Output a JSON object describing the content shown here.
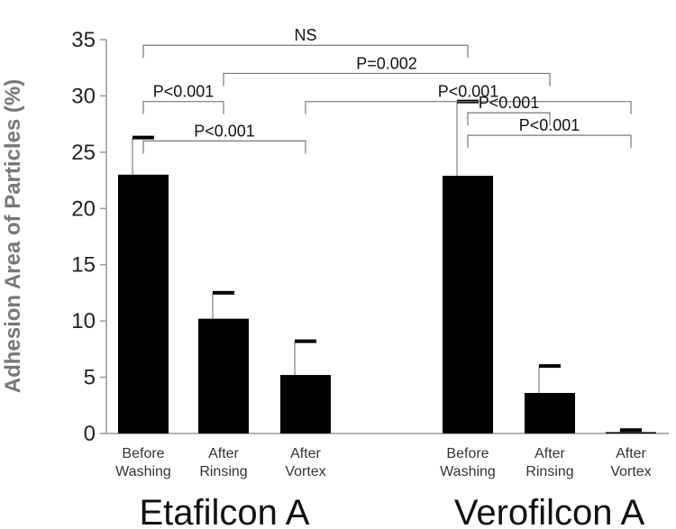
{
  "chart_data": {
    "type": "bar",
    "title": "",
    "ylabel": "Adhesion Area of Particles (%)",
    "xlabel": "",
    "ylim": [
      0,
      35
    ],
    "yticks": [
      0,
      5,
      10,
      15,
      20,
      25,
      30,
      35
    ],
    "groups": [
      {
        "name": "Etafilcon A",
        "bars": [
          {
            "label": [
              "Before",
              "Washing"
            ],
            "value": 23.0,
            "error": 3.3
          },
          {
            "label": [
              "After",
              "Rinsing"
            ],
            "value": 10.2,
            "error": 2.3
          },
          {
            "label": [
              "After",
              "Vortex"
            ],
            "value": 5.2,
            "error": 3.0
          }
        ]
      },
      {
        "name": "Verofilcon A",
        "bars": [
          {
            "label": [
              "Before",
              "Washing"
            ],
            "value": 22.9,
            "error": 6.6
          },
          {
            "label": [
              "After",
              "Rinsing"
            ],
            "value": 3.6,
            "error": 2.4
          },
          {
            "label": [
              "After",
              "Vortex"
            ],
            "value": 0.1,
            "error": 0.2
          }
        ]
      }
    ],
    "comparisons": [
      {
        "text": "NS",
        "from": [
          0,
          0
        ],
        "to": [
          1,
          0
        ],
        "level": 34.5
      },
      {
        "text": "P=0.002",
        "from": [
          0,
          1
        ],
        "to": [
          1,
          1
        ],
        "level": 32.0
      },
      {
        "text": "P<0.001",
        "from": [
          0,
          2
        ],
        "to": [
          1,
          2
        ],
        "level": 29.5
      },
      {
        "text": "P<0.001",
        "from": [
          0,
          0
        ],
        "to": [
          0,
          1
        ],
        "level": 29.5
      },
      {
        "text": "P<0.001",
        "from": [
          0,
          0
        ],
        "to": [
          0,
          2
        ],
        "level": 26.0
      },
      {
        "text": "P<0.001",
        "from": [
          1,
          0
        ],
        "to": [
          1,
          1
        ],
        "level": 28.5
      },
      {
        "text": "P<0.001",
        "from": [
          1,
          0
        ],
        "to": [
          1,
          2
        ],
        "level": 26.5
      }
    ]
  }
}
